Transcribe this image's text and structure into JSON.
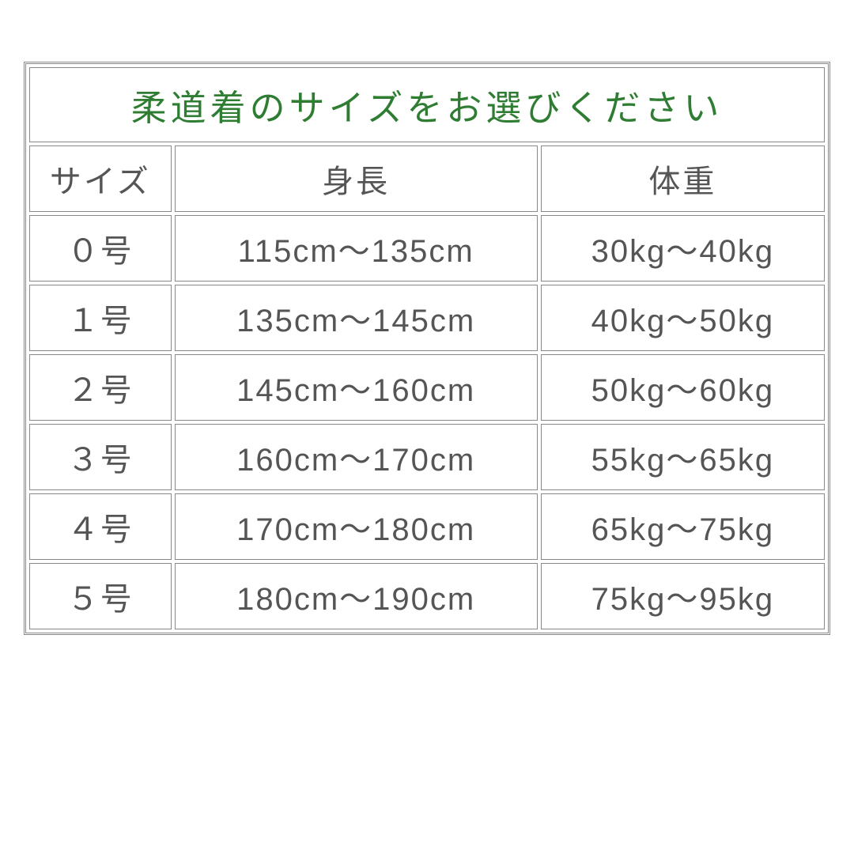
{
  "table": {
    "title": "柔道着のサイズをお選びください",
    "title_color": "#2e7d32",
    "border_color": "#888888",
    "text_color": "#555555",
    "background_color": "#ffffff",
    "title_fontsize": 45,
    "header_fontsize": 40,
    "cell_fontsize": 40,
    "columns": [
      "サイズ",
      "身長",
      "体重"
    ],
    "column_widths": [
      "18%",
      "46%",
      "36%"
    ],
    "rows": [
      [
        "０号",
        "115cm～135cm",
        "30kg～40kg"
      ],
      [
        "１号",
        "135cm～145cm",
        "40kg～50kg"
      ],
      [
        "２号",
        "145cm～160cm",
        "50kg～60kg"
      ],
      [
        "３号",
        "160cm～170cm",
        "55kg～65kg"
      ],
      [
        "４号",
        "170cm～180cm",
        "65kg～75kg"
      ],
      [
        "５号",
        "180cm～190cm",
        "75kg～95kg"
      ]
    ]
  }
}
